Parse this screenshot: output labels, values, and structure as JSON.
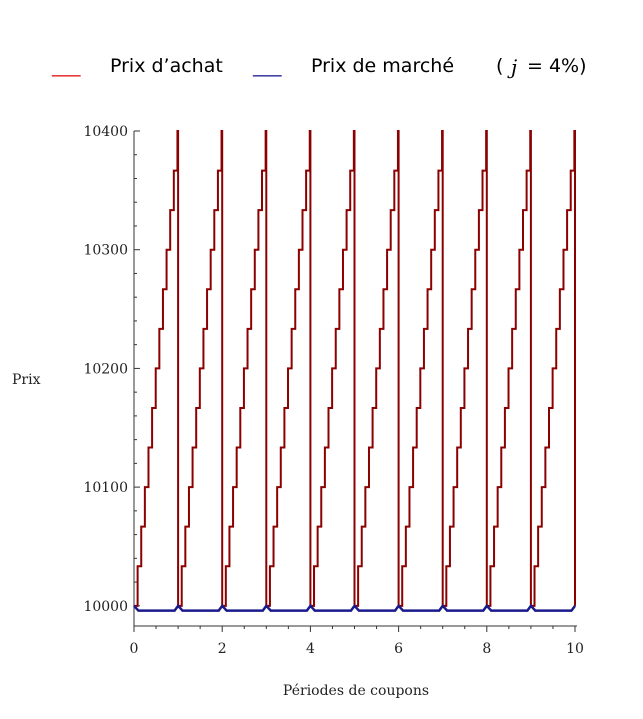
{
  "chart_data": {
    "type": "line",
    "title": "",
    "legend": {
      "placement": "top",
      "purchase_marker": "___",
      "purchase_label": "Prix d’achat",
      "market_marker": "___",
      "market_label": "Prix de marché",
      "rate_open": "(",
      "rate_var": "j",
      "rate_rest": "= 4%)"
    },
    "xlabel": "Périodes de coupons",
    "ylabel": "Prix",
    "xlim": [
      0,
      10
    ],
    "ylim": [
      9983,
      10400
    ],
    "xticks": [
      0,
      2,
      4,
      6,
      8,
      10
    ],
    "yticks": [
      10000,
      10100,
      10200,
      10300,
      10400
    ],
    "grid": false,
    "series": [
      {
        "name": "Prix d’achat",
        "color": "#8b0000",
        "style": "solid",
        "pattern": "sawtooth",
        "period": 1,
        "start_value": 10000,
        "peak_value": 10400,
        "segments_per_period": 12
      },
      {
        "name": "Prix de marché",
        "color": "#1a1a8c",
        "style": "solid",
        "pattern": "sawtooth",
        "period": 1,
        "start_value": 9996,
        "peak_value": 10000
      }
    ],
    "legend_colors": {
      "purchase": "#e01010",
      "market": "#1a1a8c"
    }
  }
}
